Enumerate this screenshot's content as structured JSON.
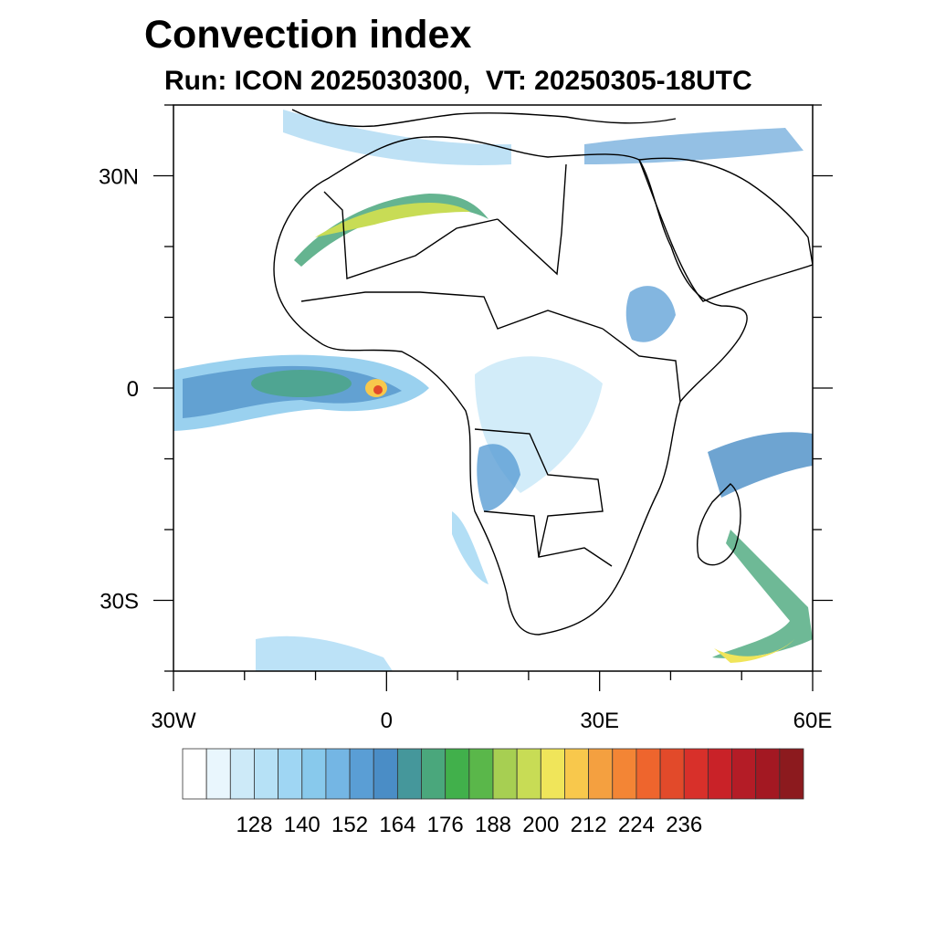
{
  "header": {
    "title": "Convection index",
    "subtitle": "Run: ICON 2025030300,  VT: 20250305-18UTC"
  },
  "map": {
    "lat_ticks": [
      {
        "value": 30,
        "label": "30N"
      },
      {
        "value": 0,
        "label": "0"
      },
      {
        "value": -30,
        "label": "30S"
      }
    ],
    "lon_ticks": [
      {
        "value": -30,
        "label": "30W"
      },
      {
        "value": 0,
        "label": "0"
      },
      {
        "value": 30,
        "label": "30E"
      },
      {
        "value": 60,
        "label": "60E"
      }
    ],
    "extent": {
      "lon": [
        -30,
        60
      ],
      "lat": [
        -40,
        40
      ]
    }
  },
  "colorbar": {
    "colors": [
      "#ffffff",
      "#e9f6fd",
      "#cdeaf8",
      "#b6e1f6",
      "#9fd6f3",
      "#88c9ec",
      "#74b6e4",
      "#5a9ed5",
      "#4a8dc6",
      "#45979b",
      "#4aa77c",
      "#41b04b",
      "#5ab74a",
      "#a7cf52",
      "#c8dc55",
      "#f0e55a",
      "#f8c84c",
      "#f4a040",
      "#f38535",
      "#ee652d",
      "#e24a2a",
      "#d8302a",
      "#c92228",
      "#b41c26",
      "#a31822",
      "#8c1a1e"
    ],
    "labels": [
      "128",
      "140",
      "152",
      "164",
      "176",
      "188",
      "200",
      "212",
      "224",
      "236"
    ]
  }
}
